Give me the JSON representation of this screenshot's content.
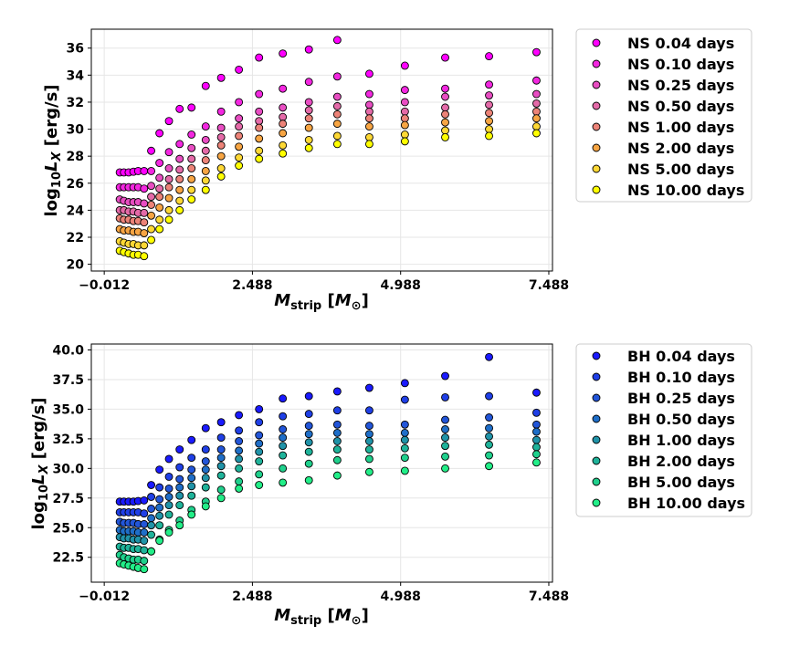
{
  "chart_data": [
    {
      "type": "scatter",
      "title": "",
      "xlabel": "M_strip [M_⊙]",
      "ylabel": "log₁₀L_X [erg/s]",
      "xlim": [
        -0.23,
        7.55
      ],
      "ylim": [
        19.5,
        37.4
      ],
      "xticks": [
        -0.012,
        2.488,
        4.988,
        7.488
      ],
      "xtick_labels": [
        "−0.012",
        "2.488",
        "4.988",
        "7.488"
      ],
      "yticks": [
        20,
        22,
        24,
        26,
        28,
        30,
        32,
        34,
        36
      ],
      "ytick_labels": [
        "20",
        "22",
        "24",
        "26",
        "28",
        "30",
        "32",
        "34",
        "36"
      ],
      "grid": true,
      "legend_position": "outside-right",
      "x": [
        0.25,
        0.32,
        0.4,
        0.48,
        0.56,
        0.66,
        0.78,
        0.92,
        1.08,
        1.26,
        1.46,
        1.7,
        1.96,
        2.26,
        2.6,
        3.0,
        3.44,
        3.92,
        4.46,
        5.06,
        5.74,
        6.48,
        7.28
      ],
      "series": [
        {
          "name": "NS 0.04 days",
          "color": "#ff00ff",
          "values": [
            26.8,
            26.8,
            26.8,
            26.85,
            26.9,
            26.9,
            28.4,
            29.7,
            30.6,
            31.5,
            31.6,
            33.2,
            33.8,
            34.4,
            35.3,
            35.6,
            35.9,
            36.6,
            34.1,
            34.7,
            35.3,
            35.4,
            35.7
          ]
        },
        {
          "name": "NS 0.10 days",
          "color": "#f327e0",
          "values": [
            25.7,
            25.7,
            25.7,
            25.7,
            25.7,
            25.6,
            26.9,
            27.5,
            28.3,
            28.9,
            29.6,
            30.2,
            31.3,
            32.0,
            32.6,
            33.0,
            33.5,
            33.9,
            32.6,
            32.9,
            33.0,
            33.3,
            33.6
          ]
        },
        {
          "name": "NS 0.25 days",
          "color": "#e84dc2",
          "values": [
            24.8,
            24.7,
            24.6,
            24.6,
            24.6,
            24.5,
            25.8,
            26.4,
            27.1,
            27.8,
            28.6,
            29.2,
            30.1,
            30.8,
            31.3,
            31.6,
            32.0,
            32.4,
            31.8,
            32.0,
            32.4,
            32.5,
            32.6
          ]
        },
        {
          "name": "NS 0.50 days",
          "color": "#e46aa8",
          "values": [
            24.0,
            24.0,
            23.9,
            23.9,
            23.8,
            23.8,
            25.0,
            25.6,
            26.3,
            27.0,
            27.8,
            28.4,
            29.4,
            30.2,
            30.6,
            30.9,
            31.4,
            31.7,
            31.3,
            31.3,
            31.6,
            31.8,
            31.9
          ]
        },
        {
          "name": "NS 1.00 days",
          "color": "#ec8378",
          "values": [
            23.4,
            23.3,
            23.3,
            23.2,
            23.2,
            23.1,
            24.4,
            25.0,
            25.7,
            26.3,
            27.1,
            27.7,
            28.8,
            29.5,
            30.1,
            30.4,
            30.8,
            31.1,
            30.8,
            30.8,
            31.1,
            31.2,
            31.3
          ]
        },
        {
          "name": "NS 2.00 days",
          "color": "#f7a543",
          "values": [
            22.6,
            22.5,
            22.5,
            22.4,
            22.4,
            22.3,
            23.6,
            24.2,
            24.9,
            25.5,
            26.3,
            26.9,
            28.0,
            28.7,
            29.3,
            29.7,
            30.1,
            30.4,
            30.2,
            30.3,
            30.5,
            30.6,
            30.8
          ]
        },
        {
          "name": "NS 5.00 days",
          "color": "#fdd835",
          "values": [
            21.7,
            21.6,
            21.5,
            21.5,
            21.4,
            21.4,
            22.6,
            23.3,
            24.0,
            24.7,
            25.5,
            26.2,
            27.1,
            27.9,
            28.4,
            28.8,
            29.2,
            29.5,
            29.4,
            29.6,
            29.9,
            30.0,
            30.2
          ]
        },
        {
          "name": "NS 10.00 days",
          "color": "#ffff00",
          "values": [
            21.0,
            20.9,
            20.8,
            20.7,
            20.7,
            20.6,
            21.8,
            22.6,
            23.3,
            24.0,
            24.8,
            25.5,
            26.5,
            27.3,
            27.8,
            28.2,
            28.6,
            28.9,
            28.9,
            29.1,
            29.4,
            29.5,
            29.7
          ]
        }
      ]
    },
    {
      "type": "scatter",
      "title": "",
      "xlabel": "M_strip [M_⊙]",
      "ylabel": "log₁₀L_X [erg/s]",
      "xlim": [
        -0.23,
        7.55
      ],
      "ylim": [
        20.4,
        40.5
      ],
      "xticks": [
        -0.012,
        2.488,
        4.988,
        7.488
      ],
      "xtick_labels": [
        "−0.012",
        "2.488",
        "4.988",
        "7.488"
      ],
      "yticks": [
        22.5,
        25.0,
        27.5,
        30.0,
        32.5,
        35.0,
        37.5,
        40.0
      ],
      "ytick_labels": [
        "22.5",
        "25.0",
        "27.5",
        "30.0",
        "32.5",
        "35.0",
        "37.5",
        "40.0"
      ],
      "grid": true,
      "legend_position": "outside-right",
      "x": [
        0.25,
        0.32,
        0.4,
        0.48,
        0.56,
        0.66,
        0.78,
        0.92,
        1.08,
        1.26,
        1.46,
        1.7,
        1.96,
        2.26,
        2.6,
        3.0,
        3.44,
        3.92,
        4.46,
        5.06,
        5.74,
        6.48,
        7.28
      ],
      "series": [
        {
          "name": "BH 0.04 days",
          "color": "#1a1aff",
          "values": [
            27.2,
            27.2,
            27.2,
            27.2,
            27.25,
            27.3,
            28.6,
            29.9,
            30.8,
            31.6,
            32.4,
            33.4,
            33.9,
            34.5,
            35.0,
            35.9,
            36.1,
            36.5,
            36.8,
            37.2,
            37.8,
            39.4,
            36.4
          ]
        },
        {
          "name": "BH 0.10 days",
          "color": "#1f3fe6",
          "values": [
            26.3,
            26.3,
            26.3,
            26.3,
            26.3,
            26.2,
            27.6,
            28.4,
            29.3,
            30.1,
            30.9,
            31.6,
            32.6,
            33.2,
            33.9,
            34.4,
            34.6,
            34.9,
            34.9,
            35.8,
            36.0,
            36.1,
            34.7
          ]
        },
        {
          "name": "BH 0.25 days",
          "color": "#2255d8",
          "values": [
            25.5,
            25.4,
            25.4,
            25.4,
            25.3,
            25.3,
            26.6,
            27.4,
            28.3,
            29.1,
            29.9,
            30.6,
            31.6,
            32.3,
            32.8,
            33.3,
            33.6,
            33.7,
            33.6,
            33.7,
            34.1,
            34.3,
            33.7
          ]
        },
        {
          "name": "BH 0.50 days",
          "color": "#1f6ec8",
          "values": [
            24.8,
            24.7,
            24.7,
            24.7,
            24.6,
            24.6,
            25.8,
            26.7,
            27.6,
            28.4,
            29.2,
            29.9,
            30.9,
            31.5,
            32.1,
            32.6,
            32.9,
            33.0,
            32.9,
            33.0,
            33.3,
            33.4,
            33.1
          ]
        },
        {
          "name": "BH 1.00 days",
          "color": "#2093a8",
          "values": [
            24.2,
            24.1,
            24.1,
            24.0,
            24.0,
            23.9,
            25.2,
            26.0,
            26.9,
            27.7,
            28.5,
            29.2,
            30.2,
            30.8,
            31.4,
            31.9,
            32.2,
            32.3,
            32.3,
            32.4,
            32.6,
            32.7,
            32.4
          ]
        },
        {
          "name": "BH 2.00 days",
          "color": "#1fb39a",
          "values": [
            23.4,
            23.3,
            23.3,
            23.2,
            23.2,
            23.1,
            24.4,
            25.2,
            26.1,
            26.9,
            27.7,
            28.4,
            29.4,
            30.0,
            30.6,
            31.1,
            31.4,
            31.6,
            31.6,
            31.7,
            31.9,
            32.0,
            31.8
          ]
        },
        {
          "name": "BH 5.00 days",
          "color": "#1fd08c",
          "values": [
            22.7,
            22.5,
            22.4,
            22.3,
            22.3,
            22.2,
            23.0,
            24.0,
            24.8,
            25.6,
            26.5,
            27.2,
            28.2,
            28.9,
            29.5,
            30.0,
            30.4,
            30.7,
            30.8,
            30.9,
            31.0,
            31.1,
            31.2
          ]
        },
        {
          "name": "BH 10.00 days",
          "color": "#22ee88",
          "values": [
            22.0,
            21.9,
            21.8,
            21.7,
            21.6,
            21.5,
            23.0,
            23.9,
            24.6,
            25.2,
            26.1,
            26.8,
            27.5,
            28.3,
            28.6,
            28.8,
            29.0,
            29.4,
            29.7,
            29.8,
            30.0,
            30.2,
            30.5
          ]
        }
      ]
    }
  ]
}
